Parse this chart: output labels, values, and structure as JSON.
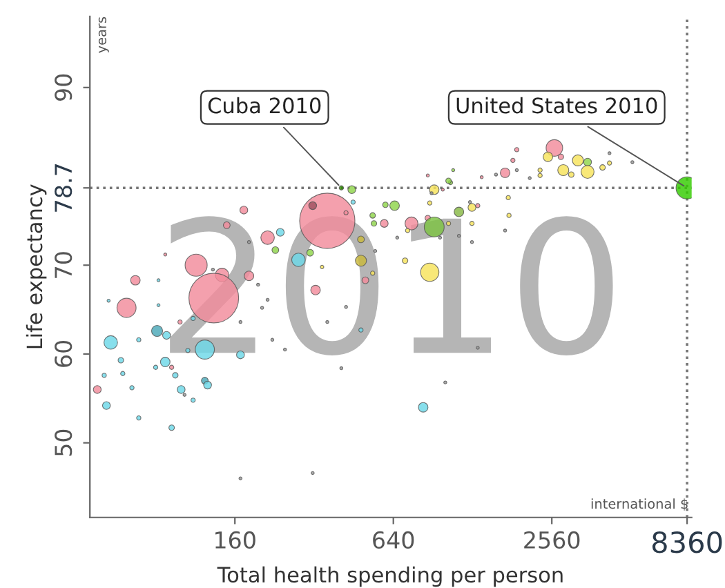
{
  "chart_data": {
    "type": "bubble",
    "xlabel": "Total health spending per person",
    "ylabel": "Life expectancy",
    "annotations": [
      "2010",
      "years",
      "international $",
      {
        "text": "Cuba 2010",
        "x": 406,
        "y": 78.7
      },
      {
        "text": "United States 2010",
        "x": 8360,
        "y": 78.7
      }
    ],
    "log": "x",
    "xlim": [
      45,
      8700
    ],
    "ylim": [
      41.6,
      98
    ],
    "xticks": [
      160,
      640,
      2560,
      8360
    ],
    "yticks": [
      50,
      60,
      70,
      78.7,
      90
    ],
    "ref_lines": [
      {
        "axis": "y",
        "value": 78.7,
        "color": "#777777",
        "line_style": "dotted"
      },
      {
        "axis": "x",
        "value": 8360,
        "color": "#777777",
        "line_style": "dotted"
      }
    ],
    "grid": false,
    "legend": false,
    "series": [
      {
        "x": [
          359,
          316,
          423,
          173,
          149,
          213,
          238,
          181,
          279,
          228,
          309,
          343,
          482,
          445,
          406,
          450,
          534,
          540,
          87,
          114,
          132,
          143,
          133,
          181,
          196,
          67,
          82,
          324,
          501,
          534,
          62,
          82,
          213,
          203,
          99,
          111,
          168,
          81,
          88,
          69,
          54,
          123,
          168,
          248,
          222,
          423,
          359,
          482,
          59,
          87,
          92,
          53,
          106,
          80,
          51,
          60,
          95,
          48,
          65,
          100,
          123,
          126,
          103,
          111,
          52,
          69,
          92,
          168,
          316,
          406,
          831,
          1008,
          1339,
          8360,
          915,
          1055,
          647,
          597,
          591,
          750,
          725,
          865,
          915,
          1037,
          1136,
          1273,
          1339,
          1251,
          1749,
          1760,
          1273,
          1701,
          1136,
          1273,
          963,
          662,
          546,
          482,
          709,
          880,
          880,
          894,
          2618,
          1884,
          1821,
          1701,
          2474,
          2771,
          3216,
          3500,
          2830,
          3500,
          3035,
          2310,
          2310,
          3990,
          4240,
          4240,
          2110,
          1386,
          1571,
          1884,
          1080,
          1037,
          865,
          5180,
          986
        ],
        "values": [
          75.0,
          76.7,
          75.9,
          76.2,
          74.5,
          73.1,
          73.7,
          72.6,
          70.6,
          71.7,
          71.4,
          69.8,
          70.5,
          78.5,
          78.7,
          77.1,
          75.6,
          74.7,
          71.2,
          70.0,
          69.5,
          68.9,
          66.3,
          68.8,
          67.8,
          68.3,
          68.3,
          67.2,
          68.3,
          69.1,
          65.2,
          65.5,
          66.1,
          65.2,
          63.6,
          64.0,
          63.6,
          62.6,
          62.1,
          61.6,
          61.3,
          60.5,
          59.9,
          60.5,
          61.6,
          65.3,
          63.6,
          62.7,
          59.3,
          59.1,
          58.5,
          66.0,
          60.4,
          58.5,
          57.6,
          57.8,
          57.6,
          56.0,
          56.2,
          56.0,
          57.0,
          56.5,
          55.4,
          54.8,
          54.2,
          52.8,
          51.7,
          46.0,
          46.6,
          58.4,
          54.0,
          56.8,
          60.7,
          78.7,
          78.5,
          79.3,
          76.7,
          76.8,
          74.7,
          74.7,
          73.9,
          75.3,
          74.3,
          74.7,
          76.0,
          76.5,
          76.7,
          77.1,
          77.6,
          75.6,
          74.7,
          73.9,
          73.3,
          72.6,
          73.1,
          73.1,
          71.6,
          72.9,
          70.5,
          69.2,
          77.0,
          78.1,
          83.2,
          83.0,
          81.8,
          80.4,
          82.2,
          82.2,
          81.8,
          81.6,
          80.7,
          80.5,
          80.2,
          80.7,
          80.1,
          81.0,
          81.5,
          82.6,
          79.8,
          79.9,
          80.2,
          80.7,
          80.7,
          79.5,
          80.1,
          81.6,
          78.5
        ],
        "sizes": [
          1,
          0.02,
          0.006,
          0.02,
          0.015,
          0.06,
          0.02,
          0.003,
          0.06,
          0.015,
          0.015,
          0.004,
          0.04,
          0.02,
          0.006,
          0.006,
          0.01,
          0.01,
          0.003,
          0.16,
          0.003,
          0.06,
          0.81,
          0.03,
          0.003,
          0.03,
          0.003,
          0.03,
          0.015,
          0.006,
          0.12,
          0.003,
          0.003,
          0.003,
          0.006,
          0.006,
          0.003,
          0.04,
          0.02,
          0.006,
          0.06,
          0.12,
          0.02,
          0.003,
          0.003,
          0.003,
          0.003,
          0.006,
          0.01,
          0.03,
          0.006,
          0.003,
          0.006,
          0.006,
          0.006,
          0.006,
          0.01,
          0.02,
          0.006,
          0.02,
          0.015,
          0.02,
          0.003,
          0.006,
          0.02,
          0.006,
          0.01,
          0.003,
          0.003,
          0.003,
          0.03,
          0.003,
          0.003,
          0.16,
          0.03,
          0.006,
          0.03,
          0.01,
          0.02,
          0.055,
          0.006,
          0.01,
          0.13,
          0.006,
          0.03,
          0.02,
          0.006,
          0.003,
          0.006,
          0.006,
          0.006,
          0.003,
          0.003,
          0.003,
          0.003,
          0.003,
          0.003,
          0.015,
          0.01,
          0.11,
          0.006,
          0.003,
          0.09,
          0.006,
          0.006,
          0.03,
          0.03,
          0.01,
          0.04,
          0.02,
          0.04,
          0.055,
          0.01,
          0.006,
          0.006,
          0.01,
          0.006,
          0.003,
          0.003,
          0.003,
          0.003,
          0.003,
          0.003,
          0.01,
          0.003,
          0.003,
          0.003
        ],
        "colors": [
          "#f28b9b",
          "#a05060",
          "#f28b9b",
          "#f28b9b",
          "#f28b9b",
          "#f28b9b",
          "#6dd8e8",
          "#999999",
          "#6dd8e8",
          "#8fd44a",
          "#8fd44a",
          "#f7e35a",
          "#c9b83a",
          "#8fd44a",
          "#2e8b00",
          "#6dd8e8",
          "#8fd44a",
          "#8fd44a",
          "#f28b9b",
          "#f28b9b",
          "#999999",
          "#f28b9b",
          "#f28b9b",
          "#f28b9b",
          "#999999",
          "#f28b9b",
          "#6dd8e8",
          "#f28b9b",
          "#f28b9b",
          "#f7e35a",
          "#f28b9b",
          "#6dd8e8",
          "#999999",
          "#999999",
          "#f28b9b",
          "#6dd8e8",
          "#999999",
          "#4aa8b8",
          "#6dd8e8",
          "#6dd8e8",
          "#6dd8e8",
          "#6dd8e8",
          "#6dd8e8",
          "#999999",
          "#999999",
          "#999999",
          "#999999",
          "#6dd8e8",
          "#6dd8e8",
          "#6dd8e8",
          "#f28b9b",
          "#6dd8e8",
          "#6dd8e8",
          "#6dd8e8",
          "#6dd8e8",
          "#6dd8e8",
          "#6dd8e8",
          "#f28b9b",
          "#6dd8e8",
          "#6dd8e8",
          "#4aa8b8",
          "#6dd8e8",
          "#999999",
          "#6dd8e8",
          "#6dd8e8",
          "#6dd8e8",
          "#6dd8e8",
          "#999999",
          "#999999",
          "#999999",
          "#6dd8e8",
          "#999999",
          "#999999",
          "#33cc00",
          "#f7e35a",
          "#8fd44a",
          "#8fd44a",
          "#8fd44a",
          "#f28b9b",
          "#f28b9b",
          "#f7e35a",
          "#f28b9b",
          "#7cc242",
          "#f7e35a",
          "#88b844",
          "#f7e35a",
          "#f28b9b",
          "#999999",
          "#f7e35a",
          "#f7e35a",
          "#f7e35a",
          "#999999",
          "#999999",
          "#999999",
          "#999999",
          "#999999",
          "#999999",
          "#c9b83a",
          "#f7e35a",
          "#f7e35a",
          "#f7e35a",
          "#999999",
          "#f28b9b",
          "#f28b9b",
          "#f28b9b",
          "#f28b9b",
          "#f7e35a",
          "#f28b9b",
          "#f7e35a",
          "#8fd44a",
          "#f7e35a",
          "#f7e35a",
          "#f7e35a",
          "#f7e35a",
          "#f7e35a",
          "#f7e35a",
          "#f7e35a",
          "#999999",
          "#999999",
          "#f28b9b",
          "#999999",
          "#999999",
          "#8fd44a",
          "#8fd44a",
          "#f28b9b",
          "#999999",
          "#f28b9b"
        ]
      }
    ]
  }
}
